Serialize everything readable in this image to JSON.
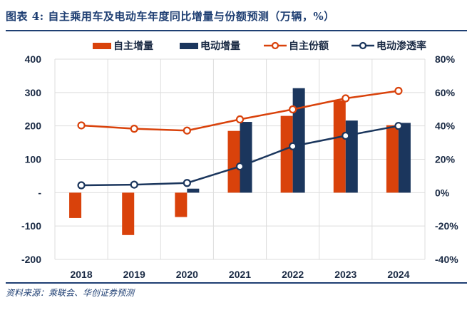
{
  "header": {
    "title": "图表 4:  自主乘用车及电动车年度同比增量与份额预测（万辆，%）"
  },
  "footer": {
    "source": "资料来源：乘联会、华创证券预测"
  },
  "colors": {
    "orange": "#d9420b",
    "navy": "#1b365d",
    "grid": "#dddddd",
    "axis_text": "#1a2a44"
  },
  "legend": [
    {
      "label": "自主增量",
      "type": "bar",
      "color": "#d9420b"
    },
    {
      "label": "电动增量",
      "type": "bar",
      "color": "#1b365d"
    },
    {
      "label": "自主份额",
      "type": "line",
      "color": "#d9420b"
    },
    {
      "label": "电动渗透率",
      "type": "line",
      "color": "#1b365d"
    }
  ],
  "chart_data": {
    "type": "bar",
    "title": "自主乘用车及电动车年度同比增量与份额预测（万辆，%）",
    "categories": [
      "2018",
      "2019",
      "2020",
      "2021",
      "2022",
      "2023",
      "2024"
    ],
    "series": [
      {
        "name": "自主增量",
        "type": "bar",
        "axis": "left",
        "color": "#d9420b",
        "values": [
          -76,
          -127,
          -73,
          185,
          230,
          276,
          202
        ]
      },
      {
        "name": "电动增量",
        "type": "bar",
        "axis": "left",
        "color": "#1b365d",
        "values": [
          0,
          0,
          12,
          212,
          313,
          216,
          209
        ]
      },
      {
        "name": "自主份额",
        "type": "line",
        "axis": "right",
        "color": "#d9420b",
        "values": [
          40.3,
          38.3,
          37.2,
          43.9,
          49.9,
          56.5,
          61.0
        ]
      },
      {
        "name": "电动渗透率",
        "type": "line",
        "axis": "right",
        "color": "#1b365d",
        "values": [
          4.4,
          4.8,
          5.8,
          15.7,
          27.8,
          34.1,
          40.0
        ]
      }
    ],
    "left_axis": {
      "ylim": [
        -200,
        400
      ],
      "ticks": [
        400,
        300,
        200,
        100,
        0,
        -100,
        -200
      ],
      "tick_labels": [
        "400",
        "300",
        "200",
        "100",
        "-",
        "-100",
        "-200"
      ]
    },
    "right_axis": {
      "ylim": [
        -40,
        80
      ],
      "ticks": [
        80,
        60,
        40,
        20,
        0,
        -20,
        -40
      ],
      "tick_labels": [
        "80%",
        "60%",
        "40%",
        "20%",
        "0%",
        "-20%",
        "-40%"
      ]
    },
    "xlabel": "",
    "ylabel": "万辆",
    "y2label": "%",
    "grid": true,
    "legend_position": "top"
  }
}
